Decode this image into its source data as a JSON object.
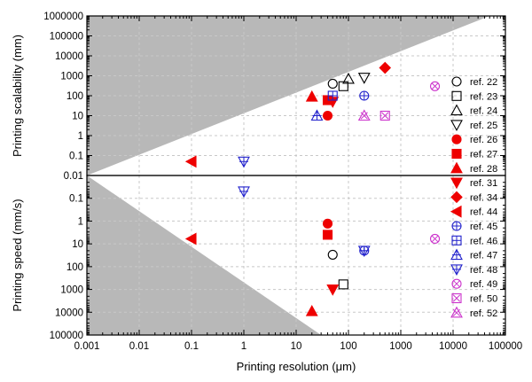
{
  "chart_data": [
    {
      "panel": "top",
      "type": "scatter",
      "xlabel": "Printing resolution (μm)",
      "ylabel": "Printing scalability (mm)",
      "xscale": "log",
      "yscale": "log",
      "xlim": [
        0.001,
        100000
      ],
      "ylim": [
        0.01,
        1000000
      ],
      "xticks": [
        "0.001",
        "0.01",
        "0.1",
        "1",
        "10",
        "100",
        "1000",
        "10000",
        "100000"
      ],
      "yticks": [
        "0.01",
        "0.1",
        "1",
        "10",
        "100",
        "1000",
        "10000",
        "100000",
        "1000000"
      ],
      "grid": true,
      "shaded_region": {
        "description": "infeasible region above diagonal",
        "line": [
          [
            0.001,
            0.01
          ],
          [
            50000,
            1000000
          ]
        ]
      },
      "series": [
        {
          "name": "ref. 22",
          "marker": "circle-open",
          "color": "#000000",
          "points": [
            [
              50,
              400
            ]
          ]
        },
        {
          "name": "ref. 23",
          "marker": "square-open",
          "color": "#000000",
          "points": [
            [
              80,
              300
            ]
          ]
        },
        {
          "name": "ref. 24",
          "marker": "triangle-up-open",
          "color": "#000000",
          "points": [
            [
              100,
              700
            ]
          ]
        },
        {
          "name": "ref. 25",
          "marker": "triangle-down-open",
          "color": "#000000",
          "points": [
            [
              200,
              800
            ]
          ]
        },
        {
          "name": "ref. 26",
          "marker": "circle",
          "color": "#ee0000",
          "points": [
            [
              40,
              10
            ]
          ]
        },
        {
          "name": "ref. 27",
          "marker": "square",
          "color": "#ee0000",
          "points": [
            [
              40,
              60
            ]
          ]
        },
        {
          "name": "ref. 28",
          "marker": "triangle-up",
          "color": "#ee0000",
          "points": [
            [
              20,
              90
            ]
          ]
        },
        {
          "name": "ref. 31",
          "marker": "triangle-down",
          "color": "#ee0000",
          "points": [
            [
              50,
              50
            ]
          ]
        },
        {
          "name": "ref. 34",
          "marker": "diamond",
          "color": "#ee0000",
          "points": [
            [
              500,
              2500
            ]
          ]
        },
        {
          "name": "ref. 44",
          "marker": "triangle-left",
          "color": "#ee0000",
          "points": [
            [
              0.1,
              0.05
            ]
          ]
        },
        {
          "name": "ref. 45",
          "marker": "circle-plus",
          "color": "#2222cc",
          "points": [
            [
              200,
              100
            ]
          ]
        },
        {
          "name": "ref. 46",
          "marker": "square-plus",
          "color": "#2222cc",
          "points": [
            [
              50,
              100
            ]
          ]
        },
        {
          "name": "ref. 47",
          "marker": "triangle-up-plus",
          "color": "#2222cc",
          "points": [
            [
              25,
              10
            ]
          ]
        },
        {
          "name": "ref. 48",
          "marker": "triangle-down-plus",
          "color": "#2222cc",
          "points": [
            [
              1,
              0.05
            ]
          ]
        },
        {
          "name": "ref. 49",
          "marker": "circle-x",
          "color": "#cc33cc",
          "points": [
            [
              4500,
              300
            ]
          ]
        },
        {
          "name": "ref. 50",
          "marker": "square-x",
          "color": "#cc33cc",
          "points": [
            [
              500,
              10
            ]
          ]
        },
        {
          "name": "ref. 52",
          "marker": "triangle-x",
          "color": "#cc33cc",
          "points": [
            [
              200,
              10
            ]
          ]
        }
      ]
    },
    {
      "panel": "bottom",
      "type": "scatter",
      "xlabel": "Printing resolution (μm)",
      "ylabel": "Printing speed (mm/s)",
      "xscale": "log",
      "yscale": "log",
      "yinverted": true,
      "xlim": [
        0.001,
        100000
      ],
      "ylim": [
        0.01,
        100000
      ],
      "xticks": [
        "0.001",
        "0.01",
        "0.1",
        "1",
        "10",
        "100",
        "1000",
        "10000",
        "100000"
      ],
      "yticks": [
        "0.1",
        "1",
        "10",
        "100",
        "1000",
        "10000",
        "100000"
      ],
      "grid": true,
      "shaded_region": {
        "description": "region below diagonal",
        "line": [
          [
            0.001,
            0.01
          ],
          [
            30,
            100000
          ]
        ]
      },
      "series": [
        {
          "name": "ref. 22",
          "marker": "circle-open",
          "color": "#000000",
          "points": [
            [
              50,
              30
            ]
          ]
        },
        {
          "name": "ref. 23",
          "marker": "square-open",
          "color": "#000000",
          "points": [
            [
              80,
              600
            ]
          ]
        },
        {
          "name": "ref. 26",
          "marker": "circle",
          "color": "#ee0000",
          "points": [
            [
              40,
              1.3
            ]
          ]
        },
        {
          "name": "ref. 27",
          "marker": "square",
          "color": "#ee0000",
          "points": [
            [
              40,
              4
            ]
          ]
        },
        {
          "name": "ref. 28",
          "marker": "triangle-up",
          "color": "#ee0000",
          "points": [
            [
              20,
              9000
            ]
          ]
        },
        {
          "name": "ref. 31",
          "marker": "triangle-down",
          "color": "#ee0000",
          "points": [
            [
              50,
              1000
            ]
          ]
        },
        {
          "name": "ref. 44",
          "marker": "triangle-left",
          "color": "#ee0000",
          "points": [
            [
              0.1,
              6
            ]
          ]
        },
        {
          "name": "ref. 45",
          "marker": "circle-plus",
          "color": "#2222cc",
          "points": [
            [
              200,
              20
            ]
          ]
        },
        {
          "name": "ref. 48",
          "marker": "triangle-down-plus",
          "color": "#2222cc",
          "points": [
            [
              1,
              0.05
            ],
            [
              200,
              20
            ]
          ]
        },
        {
          "name": "ref. 49",
          "marker": "circle-x",
          "color": "#cc33cc",
          "points": [
            [
              4500,
              6
            ]
          ]
        }
      ]
    }
  ],
  "legend": {
    "placement": "right",
    "entries": [
      {
        "label": "ref. 22",
        "marker": "circle-open",
        "color": "#000000"
      },
      {
        "label": "ref. 23",
        "marker": "square-open",
        "color": "#000000"
      },
      {
        "label": "ref. 24",
        "marker": "triangle-up-open",
        "color": "#000000"
      },
      {
        "label": "ref. 25",
        "marker": "triangle-down-open",
        "color": "#000000"
      },
      {
        "label": "ref. 26",
        "marker": "circle",
        "color": "#ee0000"
      },
      {
        "label": "ref. 27",
        "marker": "square",
        "color": "#ee0000"
      },
      {
        "label": "ref. 28",
        "marker": "triangle-up",
        "color": "#ee0000"
      },
      {
        "label": "ref. 31",
        "marker": "triangle-down",
        "color": "#ee0000"
      },
      {
        "label": "ref. 34",
        "marker": "diamond",
        "color": "#ee0000"
      },
      {
        "label": "ref. 44",
        "marker": "triangle-left",
        "color": "#ee0000"
      },
      {
        "label": "ref. 45",
        "marker": "circle-plus",
        "color": "#2222cc"
      },
      {
        "label": "ref. 46",
        "marker": "square-plus",
        "color": "#2222cc"
      },
      {
        "label": "ref. 47",
        "marker": "triangle-up-plus",
        "color": "#2222cc"
      },
      {
        "label": "ref. 48",
        "marker": "triangle-down-plus",
        "color": "#2222cc"
      },
      {
        "label": "ref. 49",
        "marker": "circle-x",
        "color": "#cc33cc"
      },
      {
        "label": "ref. 50",
        "marker": "square-x",
        "color": "#cc33cc"
      },
      {
        "label": "ref. 52",
        "marker": "triangle-x",
        "color": "#cc33cc"
      }
    ]
  },
  "colors": {
    "shade": "#b8b8b8",
    "grid": "#c8c8c8",
    "red": "#ee0000",
    "blue": "#2222cc",
    "magenta": "#cc33cc"
  }
}
